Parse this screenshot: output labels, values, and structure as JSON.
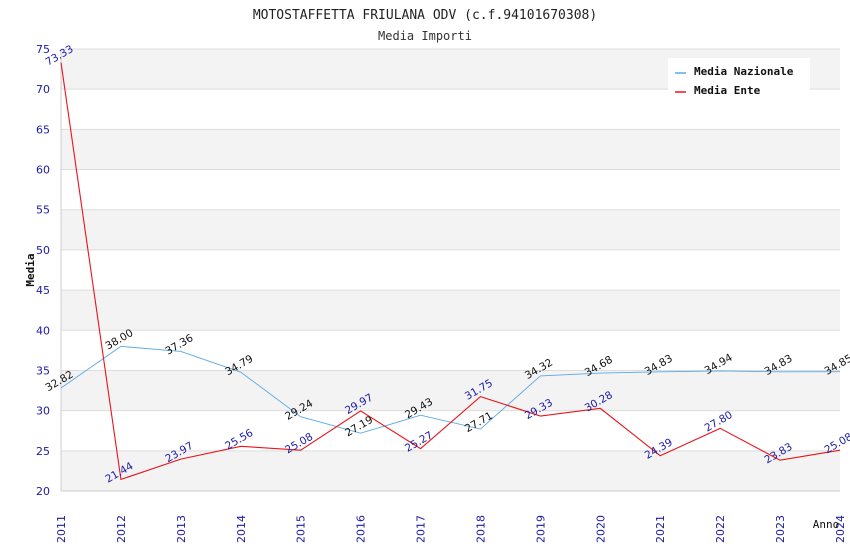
{
  "chart_data": {
    "type": "line",
    "title": "MOTOSTAFFETTA FRIULANA ODV (c.f.94101670308)",
    "subtitle": "Media Importi",
    "xlabel": "Anno",
    "ylabel": "Media",
    "ylim": [
      20,
      75
    ],
    "yticks": [
      20,
      25,
      30,
      35,
      40,
      45,
      50,
      55,
      60,
      65,
      70,
      75
    ],
    "categories": [
      "2011",
      "2012",
      "2013",
      "2014",
      "2015",
      "2016",
      "2017",
      "2018",
      "2019",
      "2020",
      "2021",
      "2022",
      "2023",
      "2024"
    ],
    "legend_position": "top-right",
    "series": [
      {
        "name": "Media Nazionale",
        "color": "#5aa9e6",
        "values": [
          32.82,
          38.0,
          37.36,
          34.79,
          29.24,
          27.19,
          29.43,
          27.71,
          34.32,
          34.68,
          34.83,
          34.94,
          34.83,
          34.85
        ],
        "labels": [
          "32.82",
          "38.00",
          "37.36",
          "34.79",
          "29.24",
          "27.19",
          "29.43",
          "27.71",
          "34.32",
          "34.68",
          "34.83",
          "34.94",
          "34.83",
          "34.85"
        ]
      },
      {
        "name": "Media Ente",
        "color": "#e8141a",
        "values": [
          73.33,
          21.44,
          23.97,
          25.56,
          25.08,
          29.97,
          25.27,
          31.75,
          29.33,
          30.28,
          24.39,
          27.8,
          23.83,
          25.08
        ],
        "labels": [
          "73.33",
          "21.44",
          "23.97",
          "25.56",
          "25.08",
          "29.97",
          "25.27",
          "31.75",
          "29.33",
          "30.28",
          "24.39",
          "27.80",
          "23.83",
          "25.08"
        ]
      }
    ]
  }
}
